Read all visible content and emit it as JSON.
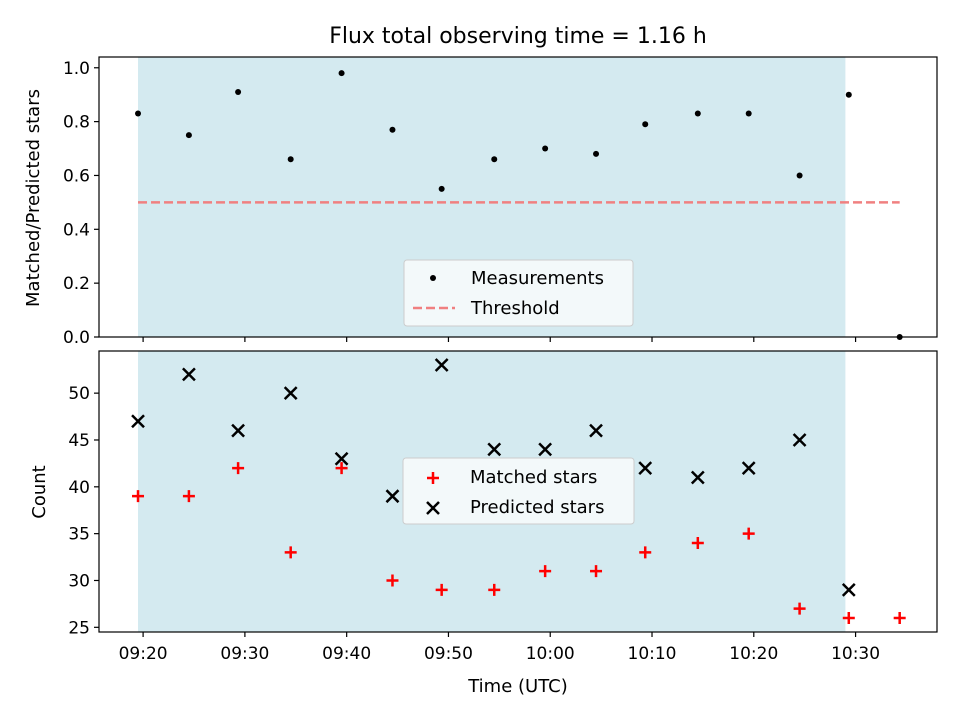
{
  "chart_data": [
    {
      "type": "scatter",
      "title": "Flux total observing time = 1.16 h",
      "ylabel": "Matched/Predicted stars",
      "ylim": [
        0.0,
        1.04
      ],
      "yticks": [
        0.0,
        0.2,
        0.4,
        0.6,
        0.8,
        1.0
      ],
      "ytick_labels": [
        "0.0",
        "0.2",
        "0.4",
        "0.6",
        "0.8",
        "1.0"
      ],
      "shaded_span": {
        "start": "09:19:30",
        "end": "10:29:00",
        "color": "#d4eaf0"
      },
      "legend": {
        "placement": "lower center",
        "entries": [
          "Measurements",
          "Threshold"
        ]
      },
      "series": [
        {
          "name": "Measurements",
          "marker": "dot",
          "color": "#000000",
          "x": [
            "09:19:30",
            "09:24:30",
            "09:29:20",
            "09:34:30",
            "09:39:30",
            "09:44:30",
            "09:49:20",
            "09:54:30",
            "09:59:30",
            "10:04:30",
            "10:09:20",
            "10:14:30",
            "10:19:30",
            "10:24:30",
            "10:29:20",
            "10:34:20"
          ],
          "y": [
            0.83,
            0.75,
            0.91,
            0.66,
            0.98,
            0.77,
            0.55,
            0.66,
            0.7,
            0.68,
            0.79,
            0.83,
            0.83,
            0.6,
            0.9,
            0.0
          ]
        },
        {
          "name": "Threshold",
          "marker": "dashed-line",
          "color": "#f08080",
          "x": [
            "09:19:30",
            "10:34:20"
          ],
          "y": [
            0.5,
            0.5
          ]
        }
      ]
    },
    {
      "type": "scatter",
      "xlabel": "Time (UTC)",
      "ylabel": "Count",
      "ylim": [
        24.5,
        54.5
      ],
      "yticks": [
        25,
        30,
        35,
        40,
        45,
        50
      ],
      "ytick_labels": [
        "25",
        "30",
        "35",
        "40",
        "45",
        "50"
      ],
      "xlim": [
        "09:15:40",
        "10:38:00"
      ],
      "xticks": [
        "09:20",
        "09:30",
        "09:40",
        "09:50",
        "10:00",
        "10:10",
        "10:20",
        "10:30"
      ],
      "shaded_span": {
        "start": "09:19:30",
        "end": "10:29:00",
        "color": "#d4eaf0"
      },
      "legend": {
        "placement": "center",
        "entries": [
          "Matched stars",
          "Predicted stars"
        ]
      },
      "series": [
        {
          "name": "Matched stars",
          "marker": "plus",
          "color": "#ff0000",
          "x": [
            "09:19:30",
            "09:24:30",
            "09:29:20",
            "09:34:30",
            "09:39:30",
            "09:44:30",
            "09:49:20",
            "09:54:30",
            "09:59:30",
            "10:04:30",
            "10:09:20",
            "10:14:30",
            "10:19:30",
            "10:24:30",
            "10:29:20",
            "10:34:20"
          ],
          "y": [
            39,
            39,
            42,
            33,
            42,
            30,
            29,
            29,
            31,
            31,
            33,
            34,
            35,
            27,
            26,
            26
          ]
        },
        {
          "name": "Predicted stars",
          "marker": "x",
          "color": "#000000",
          "x": [
            "09:19:30",
            "09:24:30",
            "09:29:20",
            "09:34:30",
            "09:39:30",
            "09:44:30",
            "09:49:20",
            "09:54:30",
            "09:59:30",
            "10:04:30",
            "10:09:20",
            "10:14:30",
            "10:19:30",
            "10:24:30",
            "10:29:20"
          ],
          "y": [
            47,
            52,
            46,
            50,
            43,
            39,
            53,
            44,
            44,
            46,
            42,
            41,
            42,
            45,
            29
          ]
        }
      ]
    }
  ]
}
